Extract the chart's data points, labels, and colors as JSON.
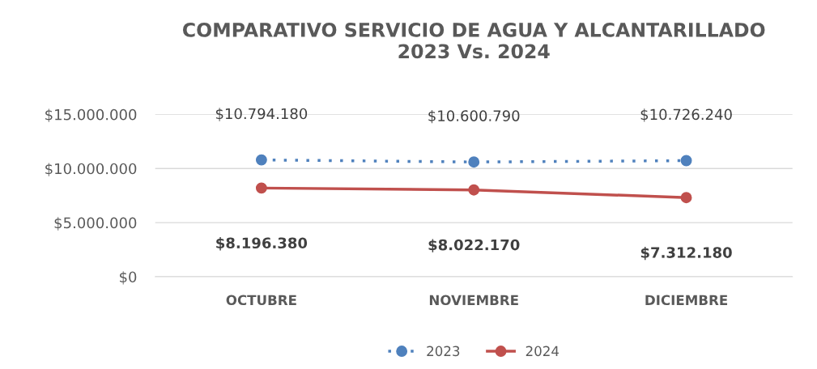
{
  "chart_data": {
    "type": "line",
    "title": "COMPARATIVO SERVICIO DE AGUA Y ALCANTARILLADO\n2023 Vs. 2024",
    "categories": [
      "OCTUBRE",
      "NOVIEMBRE",
      "DICIEMBRE"
    ],
    "series": [
      {
        "name": "2023",
        "color": "#4f81bd",
        "line_style": "dotted",
        "values": [
          10794180,
          10600790,
          10726240
        ],
        "value_labels": [
          "$10.794.180",
          "$10.600.790",
          "$10.726.240"
        ]
      },
      {
        "name": "2024",
        "color": "#c0504d",
        "line_style": "solid",
        "values": [
          8196380,
          8022170,
          7312180
        ],
        "value_labels": [
          "$8.196.380",
          "$8.022.170",
          "$7.312.180"
        ]
      }
    ],
    "ylim": [
      0,
      15000000
    ],
    "yticks": [
      {
        "value": 0,
        "label": "$0"
      },
      {
        "value": 5000000,
        "label": "$5.000.000"
      },
      {
        "value": 10000000,
        "label": "$10.000.000"
      },
      {
        "value": 15000000,
        "label": "$15.000.000"
      }
    ],
    "grid": "y",
    "legend": "bottom",
    "marker": "circle"
  }
}
